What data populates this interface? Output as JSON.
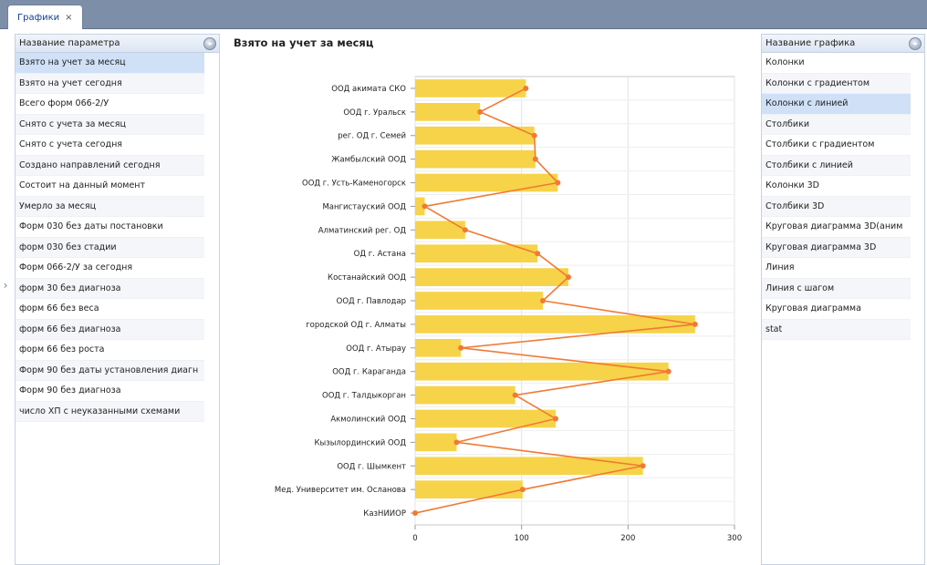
{
  "tab": {
    "label": "Графики",
    "close": "×"
  },
  "left_panel": {
    "header": "Название параметра",
    "items": [
      "Взято на учет за месяц",
      "Взято на учет сегодня",
      "Всего форм 066-2/У",
      "Снято с учета за месяц",
      "Снято с учета сегодня",
      "Создано направлений сегодня",
      "Состоит на данный момент",
      "Умерло за месяц",
      "Форм 030 без даты постановки",
      "форм 030 без стадии",
      "Форм 066-2/У за сегодня",
      "форм 30 без диагноза",
      "форм 66 без веса",
      "форм 66 без диагноза",
      "форм 66 без роста",
      "Форм 90 без даты установления диагн",
      "Форм 90 без диагноза",
      "число ХП с неуказанными схемами"
    ],
    "selected_index": 0
  },
  "right_panel": {
    "header": "Название графика",
    "items": [
      "Колонки",
      "Колонки с градиентом",
      "Колонки с линией",
      "Столбики",
      "Столбики с градиентом",
      "Столбики с линией",
      "Колонки 3D",
      "Столбики 3D",
      "Круговая диаграмма 3D(аним",
      "Круговая диаграмма 3D",
      "Линия",
      "Линия с шагом",
      "Круговая диаграмма",
      "stat"
    ],
    "selected_index": 2
  },
  "chart_data": {
    "type": "bar",
    "orientation": "horizontal",
    "title": "Взято на учет за месяц",
    "categories": [
      "ООД акимата СКО",
      "ООД г. Уральск",
      "рег. ОД г. Семей",
      "Жамбылский ООД",
      "ООД г. Усть-Каменогорск",
      "Мангистауский ООД",
      "Алматинский рег. ОД",
      "ОД г. Астана",
      "Костанайский ООД",
      "ООД г. Павлодар",
      "городской ОД г. Алматы",
      "ООД г. Атырау",
      "ООД г. Караганда",
      "ООД г. Талдыкорган",
      "Акмолинский ООД",
      "Кызылординский ООД",
      "ООД г. Шымкент",
      "Мед. Университет им. Осланова",
      "КазНИИОР"
    ],
    "values": [
      104,
      61,
      112,
      113,
      134,
      9,
      47,
      115,
      144,
      120,
      263,
      43,
      238,
      94,
      132,
      39,
      214,
      101,
      0
    ],
    "line_overlay": true,
    "xlim": [
      0,
      300
    ],
    "xticks": [
      "0",
      "100",
      "200",
      "300"
    ],
    "grid": true,
    "bar_color": "#f6d349",
    "line_color": "#f07a35"
  }
}
